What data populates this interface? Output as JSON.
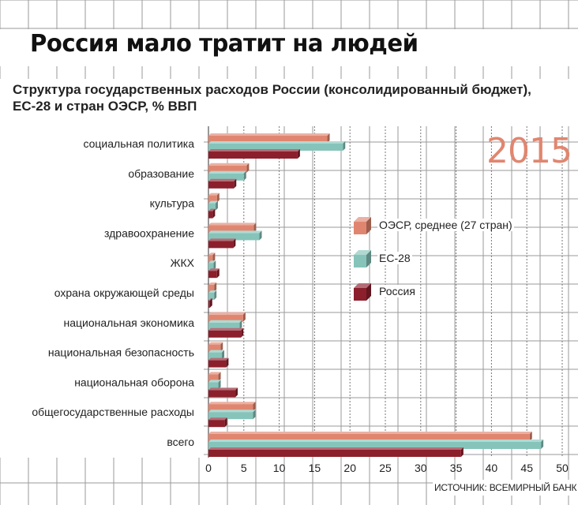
{
  "title": "Россия мало тратит на людей",
  "subtitle": "Структура государственных расходов России (консолидированный бюджет), ЕС-28 и стран ОЭСР, % ВВП",
  "year": "2015",
  "source": "ИСТОЧНИК: ВСЕМИРНЫЙ БАНК",
  "chart_data": {
    "type": "bar",
    "orientation": "horizontal",
    "categories": [
      "социальная политика",
      "образование",
      "культура",
      "здравоохранение",
      "ЖКХ",
      "охрана окружающей среды",
      "национальная экономика",
      "национальная безопасность",
      "национальная оборона",
      "общегосударственные расходы",
      "всего"
    ],
    "series": [
      {
        "name": "ОЭСР, среднее (27 стран)",
        "color": "#e08670",
        "values": [
          16.8,
          5.4,
          1.2,
          6.4,
          0.6,
          0.8,
          4.9,
          1.7,
          1.4,
          6.3,
          45.4
        ]
      },
      {
        "name": "ЕС-28",
        "color": "#86c4ba",
        "values": [
          19.0,
          5.0,
          1.0,
          7.2,
          0.7,
          0.8,
          4.4,
          1.9,
          1.4,
          6.3,
          47.0
        ]
      },
      {
        "name": "Россия",
        "color": "#8c1f2c",
        "values": [
          12.6,
          3.6,
          0.6,
          3.5,
          1.2,
          0.2,
          4.6,
          2.5,
          3.8,
          2.3,
          35.7
        ]
      }
    ],
    "xticks": [
      0,
      5,
      10,
      15,
      20,
      25,
      30,
      35,
      40,
      45,
      50
    ],
    "xlim": [
      0,
      50
    ],
    "grid": true,
    "legend": "right"
  }
}
